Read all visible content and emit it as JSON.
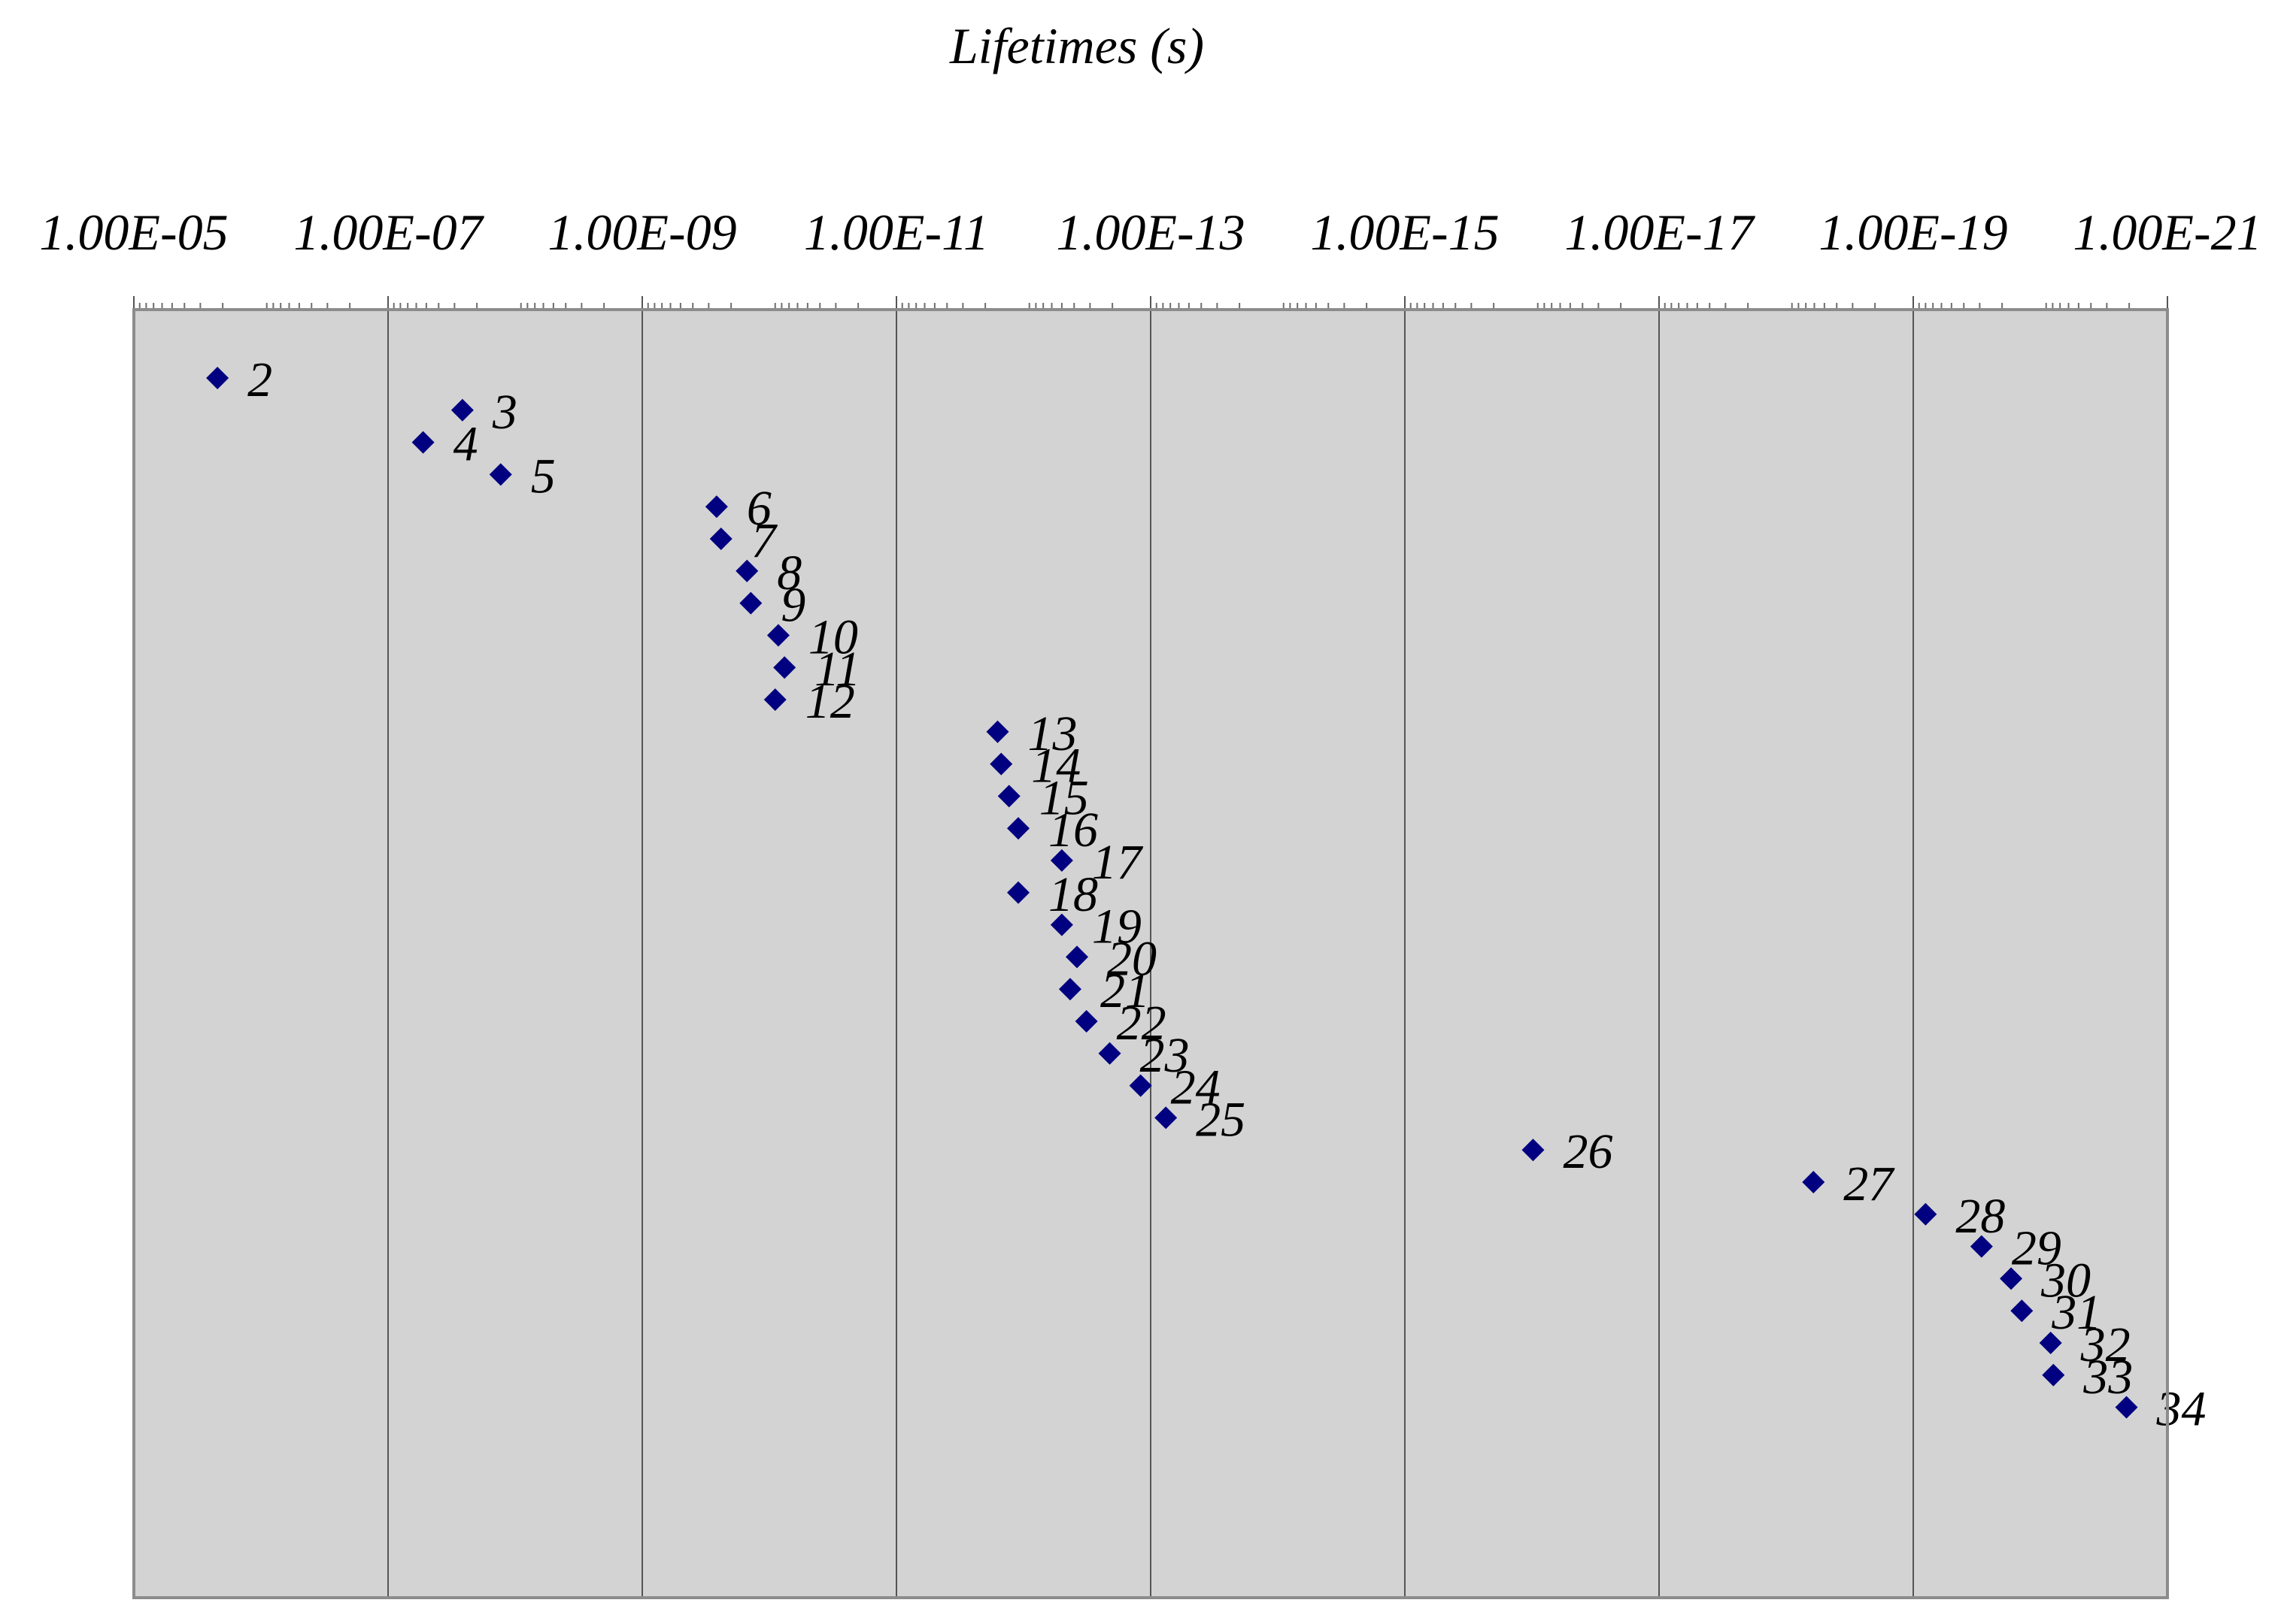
{
  "chart_data": {
    "type": "scatter",
    "xlabel": "Lifetimes (s)",
    "x_scale": "log",
    "x_direction": "reversed",
    "xlim": [
      "1.00E-05",
      "1.00E-21"
    ],
    "xticks": [
      "1.00E-05",
      "1.00E-07",
      "1.00E-09",
      "1.00E-11",
      "1.00E-13",
      "1.00E-15",
      "1.00E-17",
      "1.00E-19",
      "1.00E-21"
    ],
    "grid": "vertical major gridlines",
    "background_color": "#d3d3d3",
    "marker": "diamond",
    "marker_color": "#000080",
    "points": [
      {
        "label": "2",
        "x": "2.2e-6"
      },
      {
        "label": "3",
        "x": "2.6e-8"
      },
      {
        "label": "4",
        "x": "5.3e-8"
      },
      {
        "label": "5",
        "x": "1.3e-8"
      },
      {
        "label": "6",
        "x": "2.6e-10"
      },
      {
        "label": "7",
        "x": "2.4e-10"
      },
      {
        "label": "8",
        "x": "1.5e-10"
      },
      {
        "label": "9",
        "x": "1.4e-10"
      },
      {
        "label": "10",
        "x": "8.5e-11"
      },
      {
        "label": "11",
        "x": "7.6e-11"
      },
      {
        "label": "12",
        "x": "9.0e-11"
      },
      {
        "label": "13",
        "x": "1.6e-12"
      },
      {
        "label": "14",
        "x": "1.5e-12"
      },
      {
        "label": "15",
        "x": "1.3e-12"
      },
      {
        "label": "16",
        "x": "1.1e-12"
      },
      {
        "label": "17",
        "x": "5.0e-13"
      },
      {
        "label": "18",
        "x": "1.1e-12"
      },
      {
        "label": "19",
        "x": "5.0e-13"
      },
      {
        "label": "20",
        "x": "3.8e-13"
      },
      {
        "label": "21",
        "x": "4.3e-13"
      },
      {
        "label": "22",
        "x": "3.2e-13"
      },
      {
        "label": "23",
        "x": "2.1e-13"
      },
      {
        "label": "24",
        "x": "1.2e-13"
      },
      {
        "label": "25",
        "x": "7.6e-14"
      },
      {
        "label": "26",
        "x": "9.8e-17"
      },
      {
        "label": "27",
        "x": "6.1e-19"
      },
      {
        "label": "28",
        "x": "8.0e-20"
      },
      {
        "label": "29",
        "x": "2.9e-20"
      },
      {
        "label": "30",
        "x": "1.7e-20"
      },
      {
        "label": "31",
        "x": "1.4e-20"
      },
      {
        "label": "32",
        "x": "8.3e-21"
      },
      {
        "label": "33",
        "x": "7.9e-21"
      },
      {
        "label": "34",
        "x": "2.1e-21"
      }
    ]
  }
}
